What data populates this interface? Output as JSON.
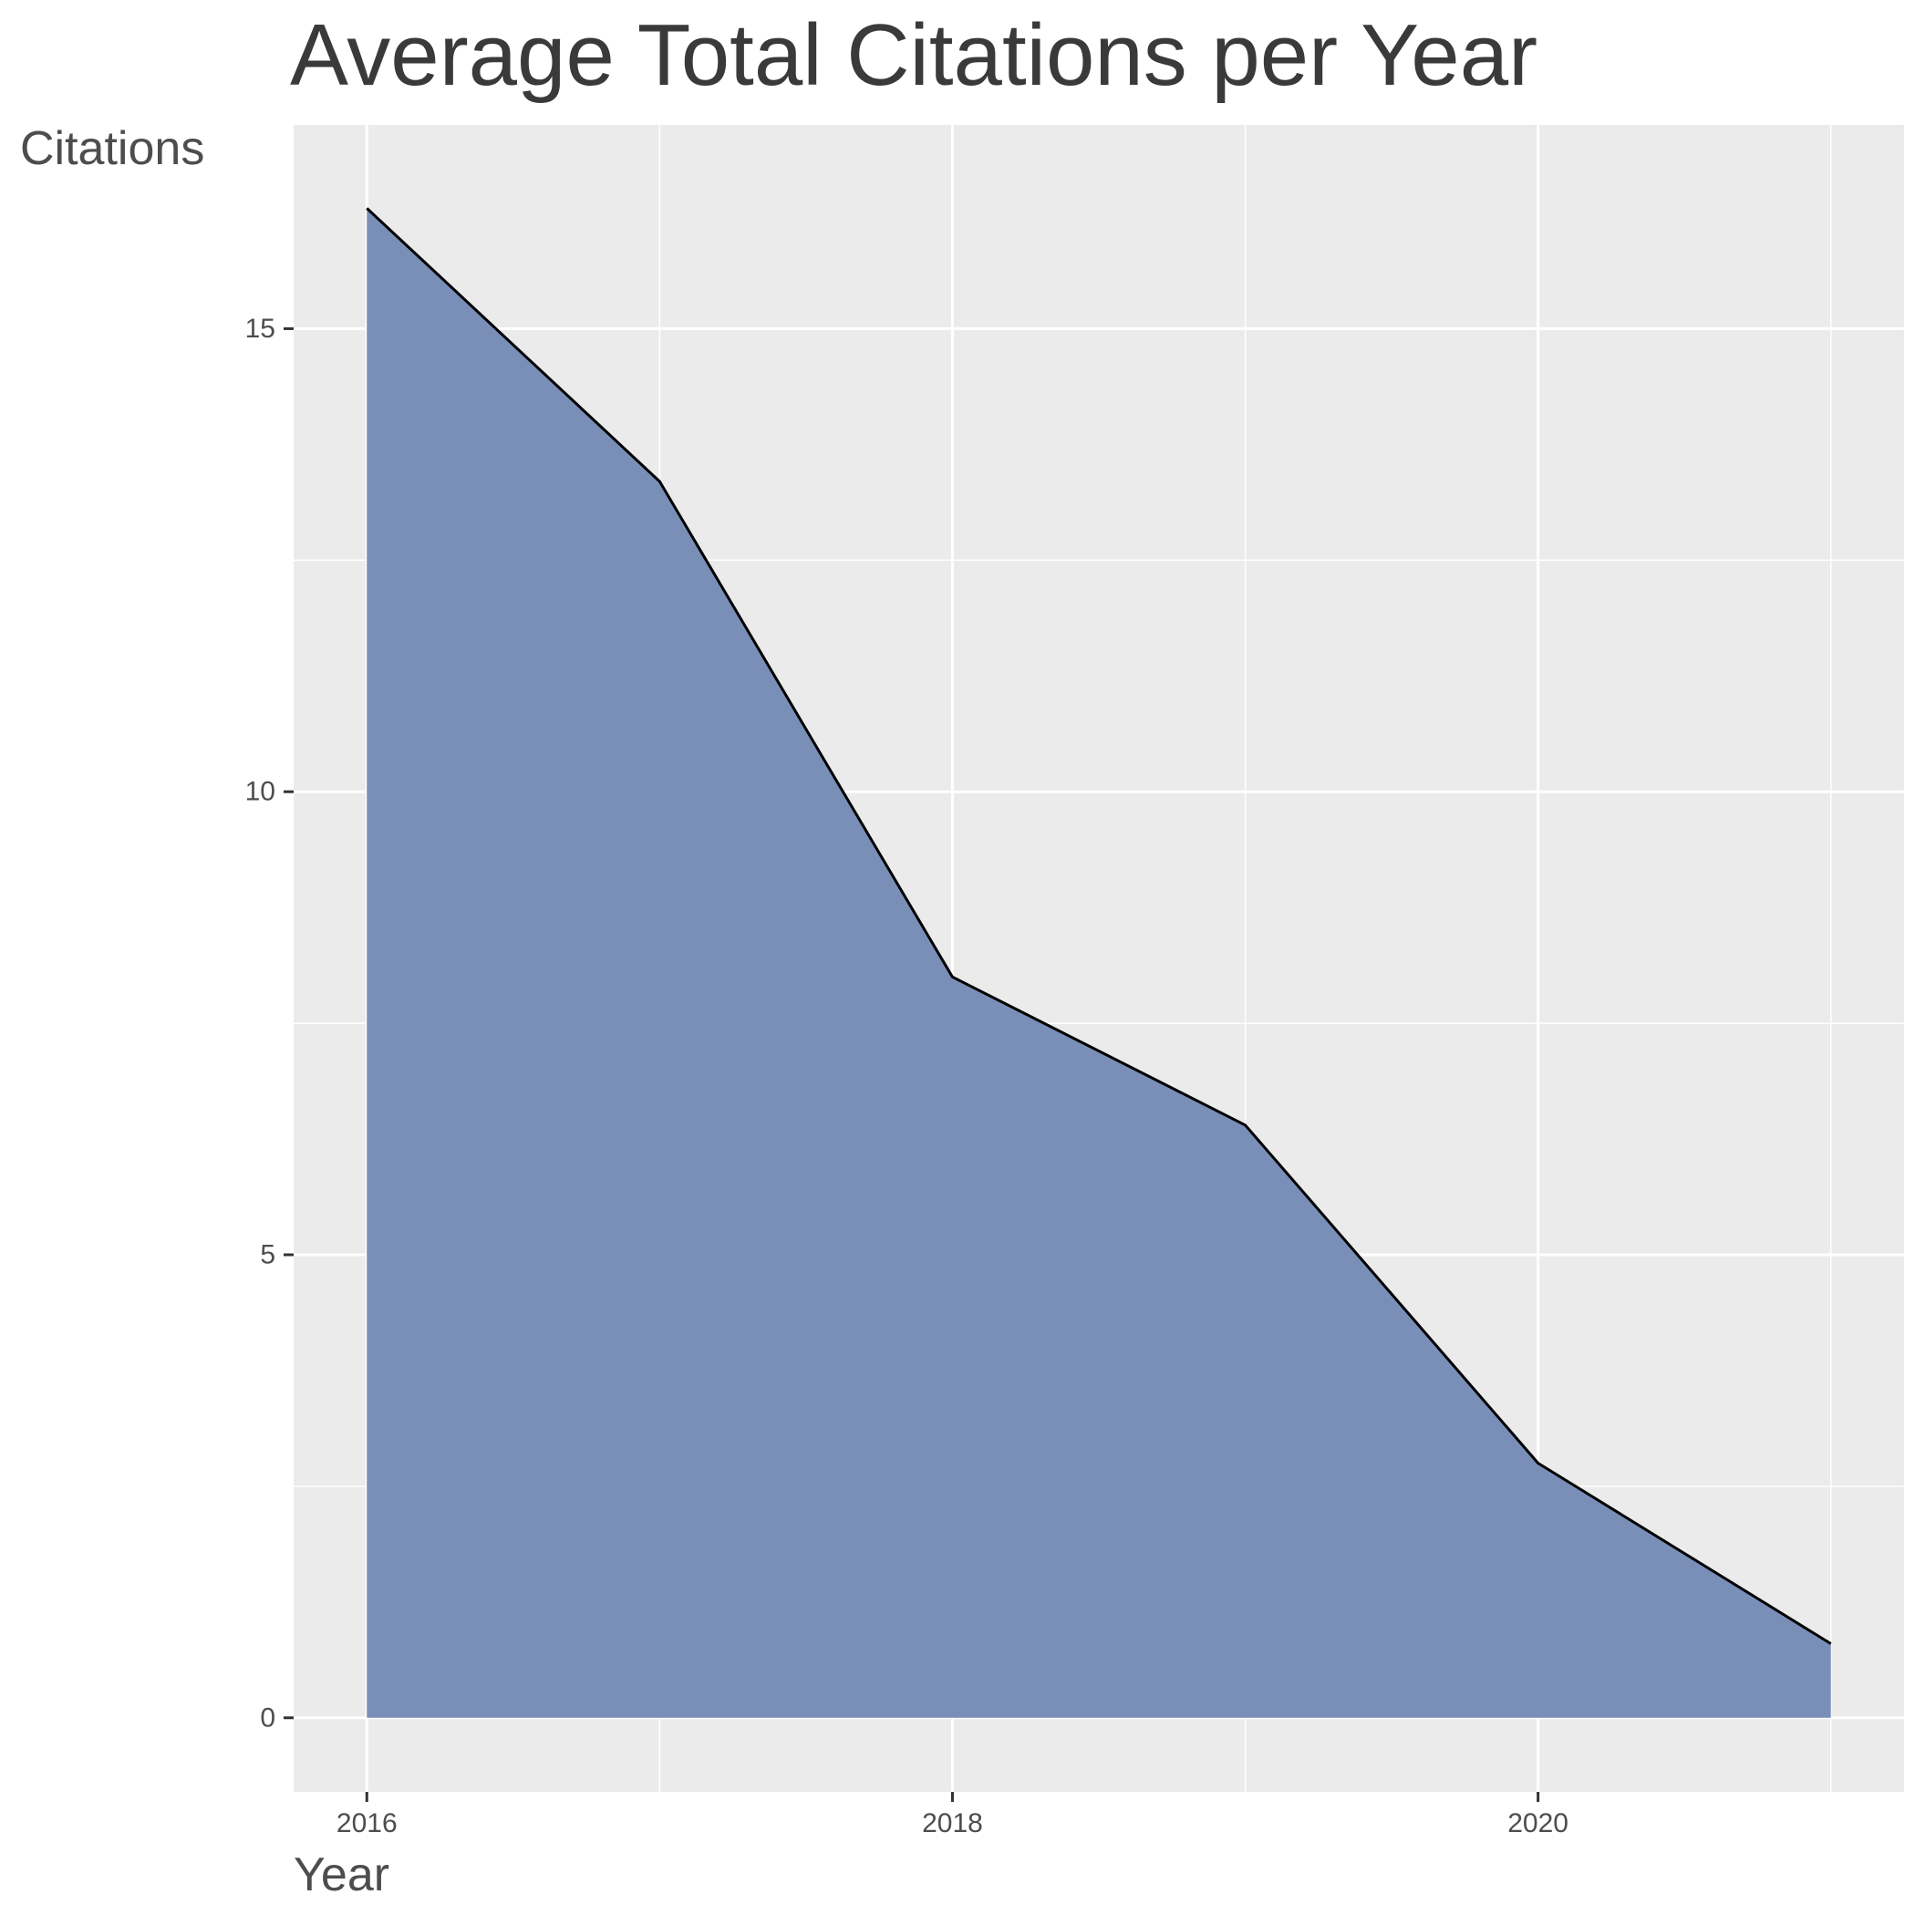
{
  "chart_data": {
    "type": "area",
    "title": "Average Total Citations per Year",
    "xlabel": "Year",
    "ylabel": "Citations",
    "x": [
      2016,
      2017,
      2018,
      2019,
      2020,
      2021
    ],
    "series": [
      {
        "values": [
          16.3,
          13.35,
          8.0,
          6.4,
          2.75,
          0.8
        ]
      }
    ],
    "xlim": [
      2015.75,
      2021.25
    ],
    "ylim": [
      -0.8,
      17.2
    ],
    "x_ticks": [
      2016,
      2018,
      2020
    ],
    "x_tick_labels": [
      "2016",
      "2018",
      "2020"
    ],
    "y_ticks": [
      0,
      5,
      10,
      15
    ],
    "y_tick_labels": [
      "0",
      "5",
      "10",
      "15"
    ],
    "grid": true,
    "colors": {
      "panel_background": "#ebebeb",
      "grid": "#ffffff",
      "area_fill": "#7a8fb7",
      "line": "#000000"
    }
  }
}
